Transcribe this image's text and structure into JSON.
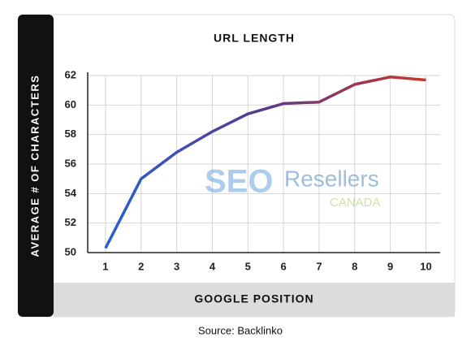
{
  "chart_data": {
    "type": "line",
    "title": "URL LENGTH",
    "x_label": "GOOGLE POSITION",
    "y_label": "AVERAGE # OF CHARACTERS",
    "source": "Source: Backlinko",
    "watermark": [
      "SEO",
      "Resellers",
      "CANADA"
    ],
    "x": [
      1,
      2,
      3,
      4,
      5,
      6,
      7,
      8,
      9,
      10
    ],
    "series": [
      {
        "name": "Average URL length",
        "color": [
          "#2a5fd0",
          "#5a3a8a",
          "#c9362a"
        ],
        "values": [
          50.3,
          55.0,
          56.8,
          58.2,
          59.4,
          60.1,
          60.2,
          61.4,
          61.9,
          61.7
        ]
      }
    ],
    "xlim": [
      0.5,
      10.4
    ],
    "ylim": [
      50,
      62
    ],
    "xticks": [
      1,
      2,
      3,
      4,
      5,
      6,
      7,
      8,
      9,
      10
    ],
    "yticks": [
      50,
      52,
      54,
      56,
      58,
      60,
      62
    ],
    "grid": true
  }
}
